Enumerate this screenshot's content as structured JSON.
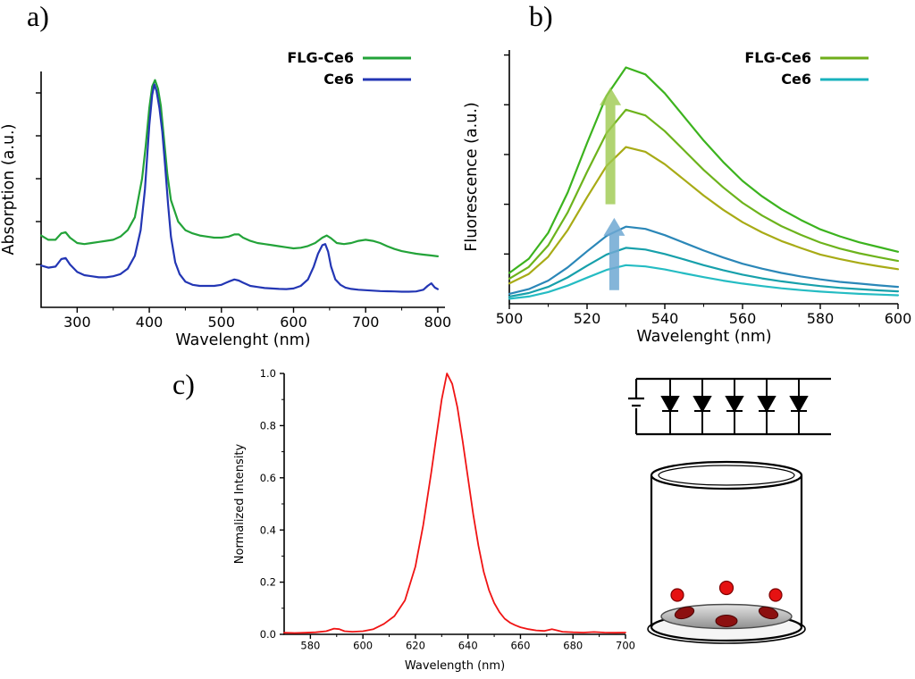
{
  "figure": {
    "panels": {
      "a": {
        "label": "a)"
      },
      "b": {
        "label": "b)"
      },
      "c": {
        "label": "c)"
      }
    }
  },
  "schematic": {
    "led_count": 5,
    "cell_color": "#e51212",
    "dark_cell_color": "#8c1010",
    "pellet_color": "#b5b5b5"
  },
  "chart_data": [
    {
      "id": "a",
      "type": "line",
      "title": "",
      "xlabel": "Wavelenght (nm)",
      "ylabel": "Absorption (a.u.)",
      "xlim": [
        250,
        810
      ],
      "ylim": [
        0,
        1.1
      ],
      "xticks": [
        300,
        400,
        500,
        600,
        700,
        800
      ],
      "xminor": [
        350,
        450,
        550,
        650,
        750
      ],
      "yticks": [
        0.2,
        0.4,
        0.6,
        0.8,
        1.0
      ],
      "ytick_labels": false,
      "legend": {
        "position": "top-right",
        "entries": [
          {
            "label": "FLG-Ce6",
            "color": "#23a339"
          },
          {
            "label": "Ce6",
            "color": "#2336b4"
          }
        ]
      },
      "series": [
        {
          "name": "FLG-Ce6",
          "color": "#23a339",
          "x": [
            250,
            260,
            270,
            278,
            284,
            290,
            300,
            310,
            320,
            330,
            340,
            350,
            360,
            370,
            380,
            390,
            395,
            400,
            404,
            408,
            412,
            416,
            420,
            425,
            430,
            440,
            450,
            460,
            470,
            480,
            490,
            500,
            510,
            518,
            524,
            530,
            540,
            550,
            560,
            570,
            580,
            590,
            600,
            610,
            620,
            630,
            640,
            646,
            652,
            660,
            670,
            680,
            690,
            700,
            710,
            720,
            730,
            740,
            750,
            760,
            770,
            780,
            790,
            800
          ],
          "y": [
            0.335,
            0.315,
            0.315,
            0.345,
            0.35,
            0.325,
            0.3,
            0.295,
            0.3,
            0.305,
            0.31,
            0.315,
            0.33,
            0.36,
            0.42,
            0.6,
            0.75,
            0.93,
            1.03,
            1.06,
            1.02,
            0.94,
            0.8,
            0.62,
            0.5,
            0.4,
            0.36,
            0.345,
            0.335,
            0.33,
            0.325,
            0.325,
            0.33,
            0.34,
            0.34,
            0.325,
            0.31,
            0.3,
            0.295,
            0.29,
            0.285,
            0.28,
            0.275,
            0.278,
            0.286,
            0.3,
            0.325,
            0.335,
            0.322,
            0.3,
            0.295,
            0.3,
            0.31,
            0.315,
            0.31,
            0.3,
            0.285,
            0.272,
            0.262,
            0.256,
            0.25,
            0.246,
            0.242,
            0.238
          ]
        },
        {
          "name": "Ce6",
          "color": "#2336b4",
          "x": [
            250,
            260,
            270,
            278,
            284,
            290,
            300,
            310,
            320,
            330,
            340,
            350,
            360,
            370,
            380,
            388,
            394,
            400,
            404,
            407,
            410,
            414,
            418,
            422,
            426,
            430,
            436,
            442,
            450,
            460,
            470,
            480,
            490,
            500,
            510,
            518,
            524,
            530,
            540,
            550,
            560,
            570,
            580,
            590,
            600,
            610,
            620,
            628,
            634,
            640,
            644,
            648,
            652,
            658,
            665,
            672,
            680,
            690,
            700,
            710,
            720,
            730,
            740,
            750,
            760,
            770,
            780,
            786,
            791,
            796,
            800
          ],
          "y": [
            0.195,
            0.185,
            0.19,
            0.225,
            0.23,
            0.2,
            0.165,
            0.15,
            0.145,
            0.14,
            0.14,
            0.145,
            0.155,
            0.18,
            0.24,
            0.36,
            0.55,
            0.85,
            0.99,
            1.04,
            1.01,
            0.93,
            0.82,
            0.66,
            0.48,
            0.33,
            0.21,
            0.155,
            0.12,
            0.105,
            0.1,
            0.1,
            0.1,
            0.105,
            0.12,
            0.13,
            0.125,
            0.115,
            0.1,
            0.095,
            0.09,
            0.088,
            0.086,
            0.085,
            0.088,
            0.1,
            0.13,
            0.19,
            0.25,
            0.29,
            0.295,
            0.26,
            0.19,
            0.13,
            0.105,
            0.092,
            0.086,
            0.082,
            0.08,
            0.078,
            0.076,
            0.075,
            0.074,
            0.073,
            0.073,
            0.074,
            0.082,
            0.1,
            0.112,
            0.092,
            0.085
          ]
        }
      ]
    },
    {
      "id": "b",
      "type": "line",
      "title": "",
      "xlabel": "Wavelenght (nm)",
      "ylabel": "Fluorescence (a.u.)",
      "xlim": [
        500,
        600
      ],
      "ylim": [
        0,
        1.02
      ],
      "xticks": [
        500,
        520,
        540,
        560,
        580,
        600
      ],
      "xminor": [
        510,
        530,
        550,
        570,
        590
      ],
      "yticks": [
        0.2,
        0.4,
        0.6,
        0.8,
        1.0
      ],
      "ytick_labels": false,
      "legend": {
        "position": "top-right",
        "entries": [
          {
            "label": "FLG-Ce6",
            "color": "#6fae1a"
          },
          {
            "label": "Ce6",
            "color": "#18b2bc"
          }
        ]
      },
      "x": [
        500,
        505,
        510,
        515,
        520,
        525,
        530,
        535,
        540,
        545,
        550,
        555,
        560,
        565,
        570,
        575,
        580,
        585,
        590,
        595,
        600
      ],
      "series": [
        {
          "name": "FLG-Ce6-high",
          "color": "#3cb31e",
          "y": [
            0.124,
            0.181,
            0.285,
            0.447,
            0.646,
            0.836,
            0.95,
            0.922,
            0.846,
            0.751,
            0.656,
            0.57,
            0.494,
            0.432,
            0.38,
            0.337,
            0.299,
            0.271,
            0.247,
            0.228,
            0.209
          ]
        },
        {
          "name": "FLG-Ce6-mid",
          "color": "#6db31c",
          "y": [
            0.101,
            0.148,
            0.234,
            0.367,
            0.53,
            0.686,
            0.78,
            0.757,
            0.694,
            0.616,
            0.538,
            0.468,
            0.406,
            0.355,
            0.312,
            0.277,
            0.246,
            0.222,
            0.203,
            0.187,
            0.172
          ]
        },
        {
          "name": "FLG-Ce6-low",
          "color": "#a8ab16",
          "y": [
            0.082,
            0.12,
            0.189,
            0.296,
            0.428,
            0.554,
            0.63,
            0.611,
            0.561,
            0.498,
            0.435,
            0.378,
            0.328,
            0.287,
            0.252,
            0.224,
            0.198,
            0.18,
            0.164,
            0.151,
            0.139
          ]
        },
        {
          "name": "Ce6-high",
          "color": "#2b87b8",
          "y": [
            0.04,
            0.059,
            0.093,
            0.146,
            0.211,
            0.273,
            0.31,
            0.301,
            0.276,
            0.245,
            0.214,
            0.186,
            0.161,
            0.141,
            0.124,
            0.11,
            0.098,
            0.088,
            0.081,
            0.074,
            0.068
          ]
        },
        {
          "name": "Ce6-mid",
          "color": "#17a0ab",
          "y": [
            0.029,
            0.043,
            0.068,
            0.106,
            0.153,
            0.198,
            0.225,
            0.218,
            0.2,
            0.178,
            0.155,
            0.135,
            0.117,
            0.102,
            0.09,
            0.08,
            0.071,
            0.064,
            0.059,
            0.054,
            0.05
          ]
        },
        {
          "name": "Ce6-low",
          "color": "#25bcc3",
          "y": [
            0.02,
            0.029,
            0.047,
            0.073,
            0.105,
            0.136,
            0.155,
            0.15,
            0.138,
            0.122,
            0.107,
            0.093,
            0.081,
            0.071,
            0.062,
            0.055,
            0.049,
            0.044,
            0.04,
            0.037,
            0.034
          ]
        }
      ],
      "annotations": [
        {
          "type": "arrow-up",
          "x": 526,
          "y_from": 0.4,
          "y_to": 0.87,
          "color": "#9dc94f",
          "opacity": 0.8
        },
        {
          "type": "arrow-up",
          "x": 527,
          "y_from": 0.055,
          "y_to": 0.345,
          "color": "#6fa8d2",
          "opacity": 0.85
        }
      ]
    },
    {
      "id": "c",
      "type": "line",
      "title": "",
      "xlabel": "Wavelength (nm)",
      "ylabel": "Normalized Intensity",
      "xlim": [
        570,
        700
      ],
      "ylim": [
        0,
        1.0
      ],
      "xticks": [
        580,
        600,
        620,
        640,
        660,
        680,
        700
      ],
      "xminor": [
        590,
        610,
        630,
        650,
        670,
        690
      ],
      "yticks": [
        0,
        0.2,
        0.4,
        0.6,
        0.8,
        1.0
      ],
      "yminor": [
        0.1,
        0.3,
        0.5,
        0.7,
        0.9
      ],
      "ytick_labels": true,
      "legend": null,
      "series": [
        {
          "name": "laser-emission",
          "color": "#f01414",
          "x": [
            570,
            574,
            578,
            582,
            586,
            589,
            591,
            593,
            596,
            600,
            604,
            608,
            612,
            616,
            620,
            623,
            626,
            628,
            630,
            632,
            634,
            636,
            638,
            640,
            642,
            644,
            646,
            648,
            650,
            652,
            654,
            656,
            658,
            660,
            663,
            666,
            669,
            672,
            674,
            676,
            680,
            684,
            688,
            692,
            696,
            700
          ],
          "y": [
            0.006,
            0.005,
            0.006,
            0.008,
            0.012,
            0.022,
            0.02,
            0.012,
            0.01,
            0.012,
            0.02,
            0.04,
            0.07,
            0.13,
            0.26,
            0.42,
            0.62,
            0.76,
            0.9,
            1.0,
            0.96,
            0.87,
            0.74,
            0.6,
            0.46,
            0.34,
            0.24,
            0.17,
            0.12,
            0.085,
            0.06,
            0.045,
            0.035,
            0.027,
            0.02,
            0.015,
            0.013,
            0.02,
            0.015,
            0.01,
            0.008,
            0.007,
            0.009,
            0.007,
            0.006,
            0.007
          ]
        }
      ]
    }
  ]
}
